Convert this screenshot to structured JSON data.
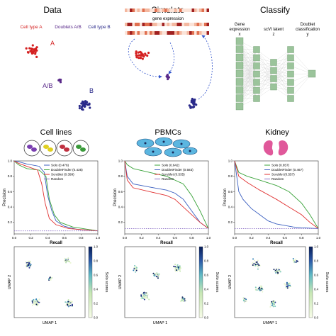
{
  "top": {
    "data_panel": {
      "title": "Data",
      "labels": {
        "cell_a": "Cell type A",
        "doublets": "Doublets A/B",
        "cell_b": "Cell type B",
        "a": "A",
        "ab": "A/B",
        "b": "B"
      }
    },
    "simulate_panel": {
      "title": "Simulate",
      "gene_expression": "gene expression"
    },
    "classify_panel": {
      "title": "Classify",
      "col1": [
        "Gene",
        "expression",
        "x"
      ],
      "col2": [
        "scVI latent",
        "z"
      ],
      "col3": [
        "Doublet",
        "classification",
        "y"
      ]
    }
  },
  "datasets": [
    {
      "title": "Cell lines",
      "legend": [
        "Solo (0.476)",
        "DoubletFinder (0.435)",
        "Scrublet (0.399)",
        "Random"
      ],
      "pr_chart": {
        "type": "line",
        "xlabel": "Recall",
        "ylabel": "Precision",
        "xlim": [
          0,
          1
        ],
        "ylim": [
          0.05,
          1.0
        ],
        "xticks": [
          "0.0",
          "0.2",
          "0.4",
          "0.6",
          "0.8",
          "1.0"
        ],
        "yticks": [
          "0.2",
          "0.4",
          "0.6",
          "0.8",
          "1.0"
        ],
        "series": [
          {
            "name": "Solo (0.476)",
            "color": "#3b5fc0",
            "x": [
              0,
              0.05,
              0.15,
              0.3,
              0.36,
              0.4,
              0.45,
              0.5,
              0.6,
              0.75,
              1.0
            ],
            "y": [
              1.0,
              0.99,
              0.96,
              0.93,
              0.85,
              0.55,
              0.35,
              0.22,
              0.15,
              0.11,
              0.09
            ]
          },
          {
            "name": "DoubletFinder (0.435)",
            "color": "#3aa33a",
            "x": [
              0,
              0.05,
              0.15,
              0.3,
              0.38,
              0.42,
              0.48,
              0.55,
              0.7,
              1.0
            ],
            "y": [
              1.0,
              0.95,
              0.9,
              0.88,
              0.8,
              0.5,
              0.3,
              0.2,
              0.14,
              0.09
            ]
          },
          {
            "name": "Scrublet (0.399)",
            "color": "#e03030",
            "x": [
              0,
              0.05,
              0.15,
              0.28,
              0.33,
              0.37,
              0.42,
              0.5,
              0.65,
              1.0
            ],
            "y": [
              1.0,
              0.97,
              0.93,
              0.88,
              0.7,
              0.45,
              0.25,
              0.17,
              0.12,
              0.09
            ]
          },
          {
            "name": "Random",
            "color": "#8a6fc5",
            "x": [
              0,
              1
            ],
            "y": [
              0.09,
              0.09
            ]
          }
        ]
      },
      "umap": {
        "xlabel": "UMAP 1",
        "ylabel": "UMAP 2",
        "colorbar_label": "Solo scores",
        "cticks": [
          "0.0",
          "0.2",
          "0.4",
          "0.6",
          "0.8",
          "1.0"
        ]
      }
    },
    {
      "title": "PBMCs",
      "legend": [
        "Solo (0.642)",
        "DoubletFinder (0.583)",
        "Scrublet (0.535)",
        "Random"
      ],
      "pr_chart": {
        "type": "line",
        "xlabel": "Recall",
        "ylabel": "Precision",
        "xlim": [
          0,
          1
        ],
        "ylim": [
          0.05,
          1.0
        ],
        "xticks": [
          "0.0",
          "0.2",
          "0.4",
          "0.6",
          "0.8",
          "1.0"
        ],
        "yticks": [
          "0.2",
          "0.4",
          "0.6",
          "0.8",
          "1.0"
        ],
        "series": [
          {
            "name": "Solo (0.642)",
            "color": "#3aa33a",
            "x": [
              0,
              0.03,
              0.1,
              0.3,
              0.5,
              0.6,
              0.7,
              0.8,
              0.9,
              1.0
            ],
            "y": [
              1.0,
              0.95,
              0.9,
              0.85,
              0.8,
              0.75,
              0.7,
              0.55,
              0.35,
              0.12
            ]
          },
          {
            "name": "DoubletFinder (0.583)",
            "color": "#3b5fc0",
            "x": [
              0,
              0.03,
              0.1,
              0.3,
              0.5,
              0.6,
              0.7,
              0.8,
              0.9,
              1.0
            ],
            "y": [
              1.0,
              0.8,
              0.7,
              0.66,
              0.62,
              0.58,
              0.5,
              0.35,
              0.2,
              0.12
            ]
          },
          {
            "name": "Scrublet (0.535)",
            "color": "#e03030",
            "x": [
              0,
              0.03,
              0.1,
              0.3,
              0.5,
              0.6,
              0.7,
              0.8,
              0.9,
              1.0
            ],
            "y": [
              1.0,
              0.75,
              0.65,
              0.6,
              0.55,
              0.5,
              0.4,
              0.3,
              0.2,
              0.12
            ]
          },
          {
            "name": "Random",
            "color": "#8a6fc5",
            "x": [
              0,
              1
            ],
            "y": [
              0.12,
              0.12
            ]
          }
        ]
      },
      "umap": {
        "xlabel": "UMAP 1",
        "ylabel": "UMAP 2",
        "colorbar_label": "Solo scores",
        "cticks": [
          "0.0",
          "0.2",
          "0.4",
          "0.6",
          "0.8",
          "1.0"
        ]
      }
    },
    {
      "title": "Kidney",
      "legend": [
        "Solo (0.657)",
        "DoubletFinder (0.467)",
        "Scrublet (0.557)",
        "Random"
      ],
      "pr_chart": {
        "type": "line",
        "xlabel": "Recall",
        "ylabel": "Precision",
        "xlim": [
          0,
          1
        ],
        "ylim": [
          0.05,
          1.0
        ],
        "xticks": [
          "0.0",
          "0.2",
          "0.4",
          "0.6",
          "0.8",
          "1.0"
        ],
        "yticks": [
          "0.2",
          "0.4",
          "0.6",
          "0.8",
          "1.0"
        ],
        "series": [
          {
            "name": "Solo (0.657)",
            "color": "#3aa33a",
            "x": [
              0,
              0.05,
              0.15,
              0.3,
              0.5,
              0.65,
              0.8,
              0.9,
              1.0
            ],
            "y": [
              1.0,
              0.85,
              0.8,
              0.75,
              0.68,
              0.6,
              0.45,
              0.3,
              0.12
            ]
          },
          {
            "name": "DoubletFinder (0.467)",
            "color": "#3b5fc0",
            "x": [
              0,
              0.05,
              0.1,
              0.2,
              0.3,
              0.4,
              0.5,
              0.6,
              0.7,
              0.8,
              1.0
            ],
            "y": [
              1.0,
              0.6,
              0.5,
              0.38,
              0.3,
              0.22,
              0.18,
              0.16,
              0.14,
              0.13,
              0.12
            ]
          },
          {
            "name": "Scrublet (0.557)",
            "color": "#e03030",
            "x": [
              0,
              0.05,
              0.15,
              0.3,
              0.5,
              0.65,
              0.8,
              0.9,
              1.0
            ],
            "y": [
              1.0,
              0.8,
              0.72,
              0.62,
              0.5,
              0.4,
              0.3,
              0.2,
              0.12
            ]
          },
          {
            "name": "Random",
            "color": "#8a6fc5",
            "x": [
              0,
              1
            ],
            "y": [
              0.12,
              0.12
            ]
          }
        ]
      },
      "umap": {
        "xlabel": "UMAP 1",
        "ylabel": "UMAP 2",
        "colorbar_label": "Solo scores",
        "cticks": [
          "0.0",
          "0.2",
          "0.4",
          "0.6",
          "0.8",
          "1.0"
        ]
      }
    }
  ],
  "colors": {
    "cell_a": "#d42020",
    "cell_b": "#2a2a8a",
    "doublet": "#5a2a8a",
    "nn_node": "#9bc49b",
    "arrow": "#3355cc"
  }
}
